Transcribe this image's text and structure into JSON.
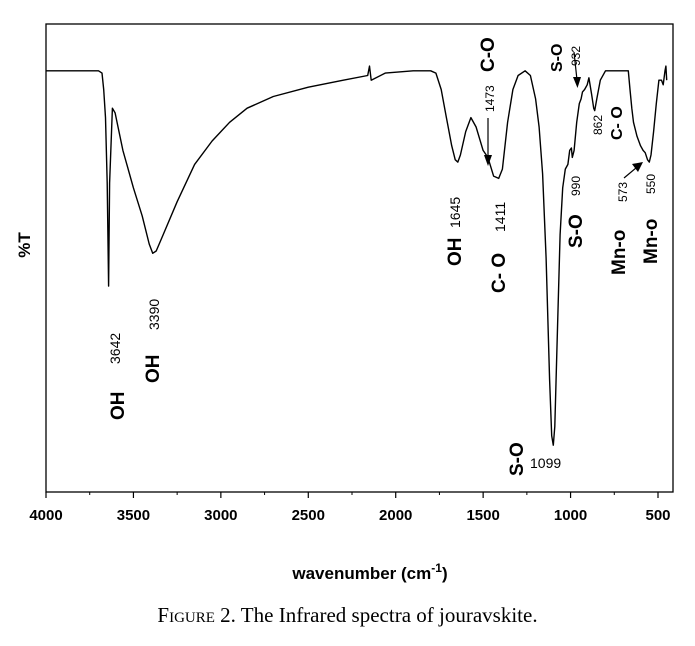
{
  "caption": {
    "lead": "Figure 2.",
    "text": "The Infrared spectra of jouravskite."
  },
  "chart_data": {
    "type": "line",
    "title": "",
    "xlabel": "wavenumber (cm",
    "xlabel_sup": "-1",
    "xlabel_close": ")",
    "ylabel": "%T",
    "xlim": [
      4000,
      400
    ],
    "x_reversed": true,
    "ylim": [
      0,
      100
    ],
    "y_ticks_shown": false,
    "grid": false,
    "x_ticks": [
      "4000",
      "3500",
      "3000",
      "2500",
      "2000",
      "1500",
      "1000",
      "500"
    ],
    "x_tick_values": [
      4000,
      3500,
      3000,
      2500,
      2000,
      1500,
      1000,
      500
    ],
    "series": [
      {
        "line_color": "#000000",
        "points": [
          [
            4000,
            90
          ],
          [
            3800,
            90
          ],
          [
            3700,
            90
          ],
          [
            3680,
            89.5
          ],
          [
            3670,
            86
          ],
          [
            3660,
            80
          ],
          [
            3650,
            66
          ],
          [
            3642,
            44
          ],
          [
            3636,
            66
          ],
          [
            3620,
            82
          ],
          [
            3605,
            81
          ],
          [
            3560,
            73
          ],
          [
            3500,
            65
          ],
          [
            3450,
            59
          ],
          [
            3410,
            53
          ],
          [
            3390,
            51
          ],
          [
            3370,
            51.5
          ],
          [
            3330,
            55
          ],
          [
            3250,
            62
          ],
          [
            3150,
            70
          ],
          [
            3050,
            75
          ],
          [
            2950,
            79
          ],
          [
            2850,
            82
          ],
          [
            2700,
            84.5
          ],
          [
            2500,
            86.5
          ],
          [
            2300,
            88
          ],
          [
            2160,
            89
          ],
          [
            2150,
            91
          ],
          [
            2140,
            88
          ],
          [
            2060,
            89.5
          ],
          [
            1900,
            90
          ],
          [
            1800,
            90
          ],
          [
            1770,
            89.5
          ],
          [
            1740,
            86
          ],
          [
            1710,
            80
          ],
          [
            1680,
            74
          ],
          [
            1660,
            71
          ],
          [
            1645,
            70.5
          ],
          [
            1630,
            72
          ],
          [
            1600,
            77
          ],
          [
            1570,
            80
          ],
          [
            1540,
            78
          ],
          [
            1500,
            73
          ],
          [
            1473,
            71.5
          ],
          [
            1440,
            67.5
          ],
          [
            1411,
            67
          ],
          [
            1390,
            69
          ],
          [
            1360,
            79
          ],
          [
            1330,
            86
          ],
          [
            1300,
            89
          ],
          [
            1260,
            90
          ],
          [
            1230,
            89
          ],
          [
            1200,
            84
          ],
          [
            1180,
            78
          ],
          [
            1160,
            68
          ],
          [
            1140,
            50
          ],
          [
            1120,
            24
          ],
          [
            1108,
            12
          ],
          [
            1099,
            10
          ],
          [
            1090,
            14
          ],
          [
            1075,
            35
          ],
          [
            1060,
            55
          ],
          [
            1045,
            65
          ],
          [
            1030,
            69
          ],
          [
            1015,
            70
          ],
          [
            1005,
            73
          ],
          [
            995,
            73.5
          ],
          [
            990,
            71.5
          ],
          [
            980,
            73
          ],
          [
            965,
            79
          ],
          [
            950,
            83
          ],
          [
            940,
            84
          ],
          [
            932,
            85.5
          ],
          [
            920,
            86
          ],
          [
            905,
            87
          ],
          [
            895,
            88.5
          ],
          [
            880,
            85
          ],
          [
            868,
            82
          ],
          [
            862,
            81.5
          ],
          [
            850,
            84
          ],
          [
            830,
            88
          ],
          [
            800,
            90
          ],
          [
            700,
            90
          ],
          [
            670,
            90
          ],
          [
            660,
            86
          ],
          [
            650,
            82
          ],
          [
            640,
            79
          ],
          [
            620,
            76
          ],
          [
            600,
            74
          ],
          [
            585,
            73
          ],
          [
            573,
            72.5
          ],
          [
            560,
            71
          ],
          [
            550,
            70.5
          ],
          [
            540,
            72
          ],
          [
            525,
            77
          ],
          [
            510,
            83
          ],
          [
            495,
            88
          ],
          [
            480,
            88
          ],
          [
            470,
            87
          ],
          [
            460,
            90
          ],
          [
            455,
            91
          ],
          [
            450,
            88
          ]
        ]
      }
    ],
    "annotations": {
      "numbers": [
        {
          "text": "3642",
          "x": 3642,
          "y": 44
        },
        {
          "text": "3390",
          "x": 3390,
          "y": 51
        },
        {
          "text": "1645",
          "x": 1645,
          "y": 70.5
        },
        {
          "text": "1473",
          "x": 1473,
          "y": 71.5
        },
        {
          "text": "1411",
          "x": 1411,
          "y": 67
        },
        {
          "text": "1099",
          "x": 1099,
          "y": 10
        },
        {
          "text": "990",
          "x": 990,
          "y": 71.5
        },
        {
          "text": "932",
          "x": 932,
          "y": 85.5
        },
        {
          "text": "862",
          "x": 862,
          "y": 81.5
        },
        {
          "text": "573",
          "x": 573,
          "y": 72.5
        },
        {
          "text": "550",
          "x": 550,
          "y": 70.5
        }
      ],
      "bands": [
        {
          "text": "OH",
          "x": 3642
        },
        {
          "text": "OH",
          "x": 3390
        },
        {
          "text": "OH",
          "x": 1645
        },
        {
          "text": "C-O",
          "x": 1473
        },
        {
          "text": "C- O",
          "x": 1411
        },
        {
          "text": "S-O",
          "x": 1099
        },
        {
          "text": "S-O",
          "x": 990
        },
        {
          "text": "S-O",
          "x": 932
        },
        {
          "text": "C- O",
          "x": 700
        },
        {
          "text": "Mn-o",
          "x": 573
        },
        {
          "text": "Mn-o",
          "x": 550
        }
      ]
    }
  }
}
